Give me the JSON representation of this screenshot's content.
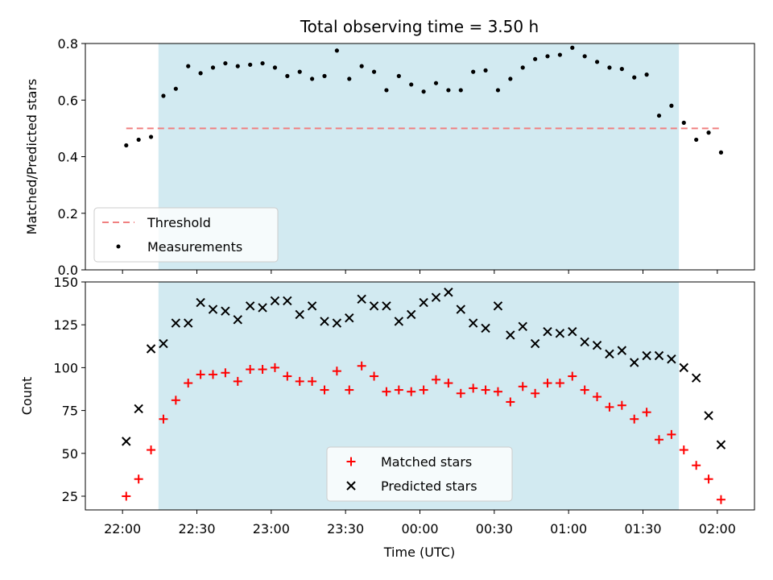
{
  "chart_data": [
    {
      "type": "scatter",
      "title": "Total observing time = 3.50 h",
      "ylabel": "Matched/Predicted stars",
      "ylim": [
        0,
        0.8
      ],
      "yticks": [
        0,
        0.2,
        0.4,
        0.6,
        0.8
      ],
      "ytick_labels": [
        "0.0",
        "0.2",
        "0.4",
        "0.6",
        "0.8"
      ],
      "x_unit": "minutes after 22:00 UTC",
      "shaded_window": {
        "start": 14.5,
        "end": 224.5,
        "color": "#add8e6"
      },
      "threshold": {
        "value": 0.5,
        "color": "#f08080",
        "style": "dashed"
      },
      "legend_location": "lower left",
      "legend": [
        "Threshold",
        "Measurements"
      ],
      "series": [
        {
          "name": "Measurements",
          "marker": "dot",
          "color": "#000000",
          "x": [
            1.5,
            6.5,
            11.5,
            16.5,
            21.5,
            26.5,
            31.5,
            36.5,
            41.5,
            46.5,
            51.5,
            56.5,
            61.5,
            66.5,
            71.5,
            76.5,
            81.5,
            86.5,
            91.5,
            96.5,
            101.5,
            106.5,
            111.5,
            116.5,
            121.5,
            126.5,
            131.5,
            136.5,
            141.5,
            146.5,
            151.5,
            156.5,
            161.5,
            166.5,
            171.5,
            176.5,
            181.5,
            186.5,
            191.5,
            196.5,
            201.5,
            206.5,
            211.5,
            216.5,
            221.5,
            226.5,
            231.5,
            236.5,
            241.5
          ],
          "y": [
            0.44,
            0.46,
            0.47,
            0.615,
            0.64,
            0.72,
            0.695,
            0.715,
            0.73,
            0.72,
            0.725,
            0.73,
            0.715,
            0.685,
            0.7,
            0.675,
            0.685,
            0.775,
            0.675,
            0.72,
            0.7,
            0.635,
            0.685,
            0.655,
            0.63,
            0.66,
            0.635,
            0.635,
            0.7,
            0.705,
            0.635,
            0.675,
            0.715,
            0.745,
            0.755,
            0.76,
            0.785,
            0.755,
            0.735,
            0.715,
            0.71,
            0.68,
            0.69,
            0.545,
            0.58,
            0.52,
            0.46,
            0.485,
            0.415
          ]
        }
      ]
    },
    {
      "type": "scatter",
      "xlabel": "Time (UTC)",
      "ylabel": "Count",
      "ylim": [
        17,
        150
      ],
      "yticks": [
        25,
        50,
        75,
        100,
        125,
        150
      ],
      "xticks": [
        0,
        30,
        60,
        90,
        120,
        150,
        180,
        210,
        240
      ],
      "xtick_labels": [
        "22:00",
        "22:30",
        "23:00",
        "23:30",
        "00:00",
        "00:30",
        "01:00",
        "01:30",
        "02:00"
      ],
      "legend_location": "lower center",
      "series": [
        {
          "name": "Matched stars",
          "marker": "plus",
          "color": "#ff0000",
          "x": [
            1.5,
            6.5,
            11.5,
            16.5,
            21.5,
            26.5,
            31.5,
            36.5,
            41.5,
            46.5,
            51.5,
            56.5,
            61.5,
            66.5,
            71.5,
            76.5,
            81.5,
            86.5,
            91.5,
            96.5,
            101.5,
            106.5,
            111.5,
            116.5,
            121.5,
            126.5,
            131.5,
            136.5,
            141.5,
            146.5,
            151.5,
            156.5,
            161.5,
            166.5,
            171.5,
            176.5,
            181.5,
            186.5,
            191.5,
            196.5,
            201.5,
            206.5,
            211.5,
            216.5,
            221.5,
            226.5,
            231.5,
            236.5,
            241.5
          ],
          "y": [
            25,
            35,
            52,
            70,
            81,
            91,
            96,
            96,
            97,
            92,
            99,
            99,
            100,
            95,
            92,
            92,
            87,
            98,
            87,
            101,
            95,
            86,
            87,
            86,
            87,
            93,
            91,
            85,
            88,
            87,
            86,
            80,
            89,
            85,
            91,
            91,
            95,
            87,
            83,
            77,
            78,
            70,
            74,
            58,
            61,
            52,
            43,
            35,
            23
          ]
        },
        {
          "name": "Predicted stars",
          "marker": "x",
          "color": "#000000",
          "x": [
            1.5,
            6.5,
            11.5,
            16.5,
            21.5,
            26.5,
            31.5,
            36.5,
            41.5,
            46.5,
            51.5,
            56.5,
            61.5,
            66.5,
            71.5,
            76.5,
            81.5,
            86.5,
            91.5,
            96.5,
            101.5,
            106.5,
            111.5,
            116.5,
            121.5,
            126.5,
            131.5,
            136.5,
            141.5,
            146.5,
            151.5,
            156.5,
            161.5,
            166.5,
            171.5,
            176.5,
            181.5,
            186.5,
            191.5,
            196.5,
            201.5,
            206.5,
            211.5,
            216.5,
            221.5,
            226.5,
            231.5,
            236.5,
            241.5
          ],
          "y": [
            57,
            76,
            111,
            114,
            126,
            126,
            138,
            134,
            133,
            128,
            136,
            135,
            139,
            139,
            131,
            136,
            127,
            126,
            129,
            140,
            136,
            136,
            127,
            131,
            138,
            141,
            144,
            134,
            126,
            123,
            136,
            119,
            124,
            114,
            121,
            120,
            121,
            115,
            113,
            108,
            110,
            103,
            107,
            107,
            105,
            100,
            94,
            72,
            55
          ]
        }
      ]
    }
  ]
}
